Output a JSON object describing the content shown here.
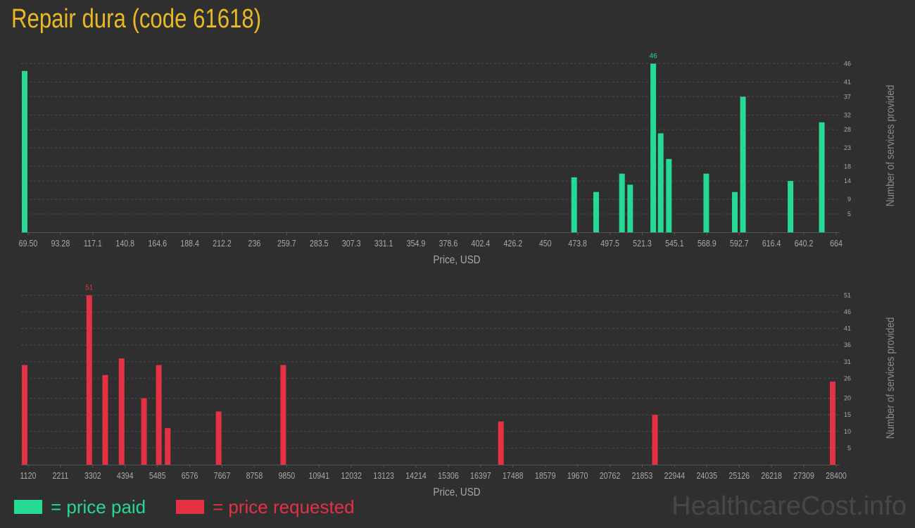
{
  "title": "Repair dura (code 61618)",
  "legend": {
    "paid": "= price paid",
    "requested": "= price requested"
  },
  "watermark": "HealthcareCost.info",
  "colors": {
    "background": "#2f2f2f",
    "title": "#e8b923",
    "paid": "#26d994",
    "requested": "#e53144",
    "grid": "#4a4a4a",
    "text": "#a8a8a8"
  },
  "chart_data": [
    {
      "type": "bar",
      "name": "paid",
      "xlabel": "Price, USD",
      "ylabel": "Number of services provided",
      "x_ticks": [
        "69.50",
        "93.28",
        "117.1",
        "140.8",
        "164.6",
        "188.4",
        "212.2",
        "236",
        "259.7",
        "283.5",
        "307.3",
        "331.1",
        "354.9",
        "378.6",
        "402.4",
        "426.2",
        "450",
        "473.8",
        "497.5",
        "521.3",
        "545.1",
        "568.9",
        "592.7",
        "616.4",
        "640.2",
        "664"
      ],
      "y_ticks": [
        5,
        9,
        14,
        18,
        23,
        28,
        32,
        37,
        41,
        46
      ],
      "xlim": [
        69.5,
        664
      ],
      "ylim": [
        0,
        48
      ],
      "color": "#26d994",
      "peak_label": "46",
      "points": [
        {
          "x": 69.5,
          "y": 44
        },
        {
          "x": 473.8,
          "y": 15
        },
        {
          "x": 490,
          "y": 11
        },
        {
          "x": 509,
          "y": 16
        },
        {
          "x": 515,
          "y": 13
        },
        {
          "x": 532,
          "y": 46
        },
        {
          "x": 537.5,
          "y": 27
        },
        {
          "x": 543.5,
          "y": 20
        },
        {
          "x": 571,
          "y": 16
        },
        {
          "x": 592,
          "y": 11
        },
        {
          "x": 598,
          "y": 37
        },
        {
          "x": 633,
          "y": 14
        },
        {
          "x": 656,
          "y": 30
        }
      ]
    },
    {
      "type": "bar",
      "name": "requested",
      "xlabel": "Price, USD",
      "ylabel": "Number of services provided",
      "x_ticks": [
        "1120",
        "2211",
        "3302",
        "4394",
        "5485",
        "6576",
        "7667",
        "8758",
        "9850",
        "10941",
        "12032",
        "13123",
        "14214",
        "15306",
        "16397",
        "17488",
        "18579",
        "19670",
        "20762",
        "21853",
        "22944",
        "24035",
        "25126",
        "26218",
        "27309",
        "28400"
      ],
      "y_ticks": [
        5,
        10,
        15,
        20,
        26,
        31,
        36,
        41,
        46,
        51
      ],
      "xlim": [
        1120,
        28400
      ],
      "ylim": [
        0,
        53
      ],
      "color": "#e53144",
      "peak_label": "51",
      "points": [
        {
          "x": 1120,
          "y": 30
        },
        {
          "x": 3302,
          "y": 51
        },
        {
          "x": 3840,
          "y": 27
        },
        {
          "x": 4394,
          "y": 32
        },
        {
          "x": 5150,
          "y": 20
        },
        {
          "x": 5650,
          "y": 30
        },
        {
          "x": 5950,
          "y": 11
        },
        {
          "x": 7670,
          "y": 16
        },
        {
          "x": 9850,
          "y": 30
        },
        {
          "x": 17200,
          "y": 13
        },
        {
          "x": 22400,
          "y": 15
        },
        {
          "x": 28400,
          "y": 25
        }
      ]
    }
  ]
}
